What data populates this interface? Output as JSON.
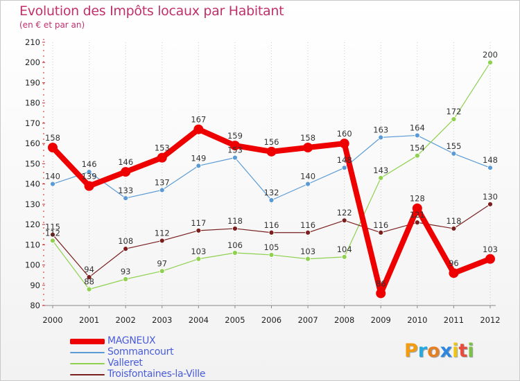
{
  "title": "Evolution des Impôts locaux par Habitant",
  "subtitle": "(en € et par an)",
  "logo": {
    "letters": [
      "P",
      "r",
      "o",
      "x",
      "i",
      "t",
      "i"
    ],
    "colors": [
      "#f39c12",
      "#27a8e0",
      "#e67e22",
      "#2e86de",
      "#f1c40f",
      "#e74c3c",
      "#7dc142"
    ]
  },
  "chart_data": {
    "type": "line",
    "title": "Evolution des Impôts locaux par Habitant",
    "ylabel": "(en € et par an)",
    "xlabel": "",
    "ylim": [
      80,
      210
    ],
    "yticks": [
      80,
      90,
      100,
      110,
      120,
      130,
      140,
      150,
      160,
      170,
      180,
      190,
      200,
      210
    ],
    "x": [
      "2000",
      "2001",
      "2002",
      "2003",
      "2004",
      "2005",
      "2006",
      "2007",
      "2008",
      "2009",
      "2010",
      "2011",
      "2012"
    ],
    "series": [
      {
        "name": "Sommancourt",
        "color": "#5b9bd5",
        "width": 1.2,
        "dot": 3.5,
        "values": [
          140,
          146,
          133,
          137,
          149,
          153,
          132,
          140,
          148,
          163,
          164,
          155,
          148
        ]
      },
      {
        "name": "Valleret",
        "color": "#8fd14f",
        "width": 1.2,
        "dot": 3.5,
        "values": [
          112,
          88,
          93,
          97,
          103,
          106,
          105,
          103,
          104,
          143,
          154,
          172,
          200
        ]
      },
      {
        "name": "Troisfontaines-la-Ville",
        "color": "#7a1e1e",
        "width": 1.2,
        "dot": 3.5,
        "values": [
          115,
          94,
          108,
          112,
          117,
          118,
          116,
          116,
          122,
          116,
          121,
          118,
          130
        ]
      },
      {
        "name": "MAGNEUX",
        "color": "#ee0000",
        "width": 8,
        "dot": 7,
        "values": [
          158,
          139,
          146,
          153,
          167,
          159,
          156,
          158,
          160,
          86,
          128,
          96,
          103
        ]
      }
    ],
    "legend_order": [
      "MAGNEUX",
      "Sommancourt",
      "Valleret",
      "Troisfontaines-la-Ville"
    ],
    "legend_position": "bottom-left",
    "grid": "vertical-dotted"
  }
}
